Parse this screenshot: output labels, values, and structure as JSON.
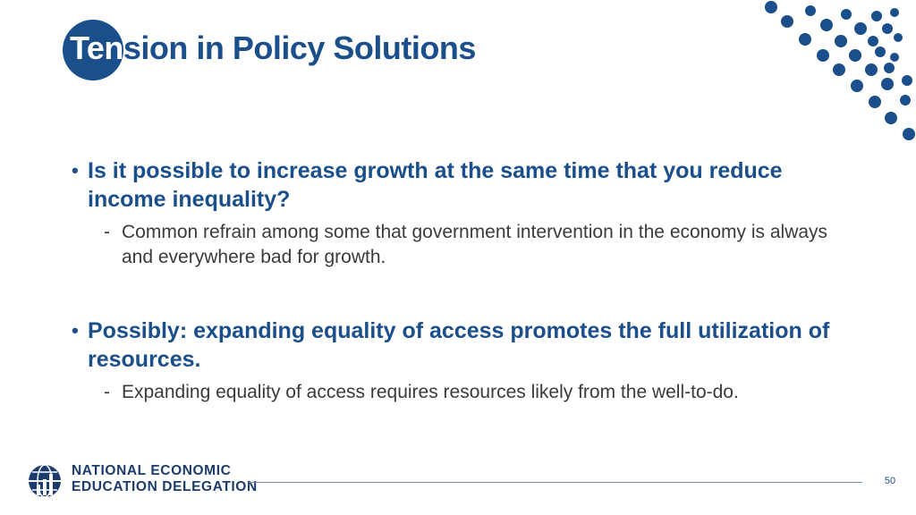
{
  "title": {
    "part1": "Ten",
    "part2": "sion in Policy Solutions"
  },
  "bullets": [
    {
      "text": "Is it possible to increase growth at the same time that you reduce income inequality?",
      "sub": "Common refrain among some that government intervention in the economy is always and everywhere bad for growth."
    },
    {
      "text": "Possibly: expanding equality of access promotes the full utilization of resources.",
      "sub": "Expanding equality of access requires resources likely from the well-to-do."
    }
  ],
  "bullet_marker": "•",
  "sub_marker": "-",
  "footer": {
    "org_line1": "NATIONAL ECONOMIC",
    "org_line2": "EDUCATION DELEGATION",
    "page_number": "50"
  },
  "colors": {
    "accent": "#1a4f8b",
    "body_text": "#3b3b3b",
    "background": "#ffffff"
  }
}
